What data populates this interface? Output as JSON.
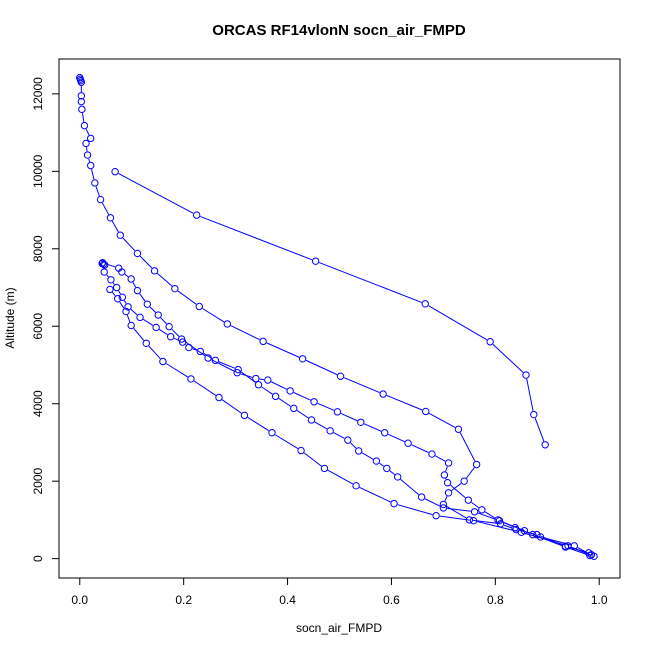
{
  "chart_data": {
    "type": "line",
    "title": "ORCAS RF14vlonN socn_air_FMPD",
    "xlabel": "socn_air_FMPD",
    "ylabel": "Altitude (m)",
    "xlim": [
      -0.04,
      1.04
    ],
    "ylim": [
      -500,
      12900
    ],
    "xticks": [
      0.0,
      0.2,
      0.4,
      0.6,
      0.8,
      1.0
    ],
    "xtick_labels": [
      "0.0",
      "0.2",
      "0.4",
      "0.6",
      "0.8",
      "1.0"
    ],
    "yticks": [
      0,
      2000,
      4000,
      6000,
      8000,
      10000,
      12000
    ],
    "ytick_labels": [
      "0",
      "2000",
      "4000",
      "6000",
      "8000",
      "10000",
      "12000"
    ],
    "grid": false,
    "color": "#0000ff",
    "series": [
      {
        "points": [
          [
            0.0,
            12420
          ],
          [
            0.001,
            12380
          ],
          [
            0.002,
            12340
          ],
          [
            0.003,
            12300
          ],
          [
            0.003,
            11950
          ],
          [
            0.003,
            11800
          ],
          [
            0.004,
            11600
          ],
          [
            0.009,
            11180
          ],
          [
            0.021,
            10850
          ],
          [
            0.012,
            10720
          ],
          [
            0.015,
            10420
          ],
          [
            0.021,
            10150
          ],
          [
            0.029,
            9700
          ],
          [
            0.04,
            9270
          ],
          [
            0.059,
            8800
          ],
          [
            0.078,
            8350
          ],
          [
            0.111,
            7880
          ],
          [
            0.144,
            7430
          ],
          [
            0.183,
            6970
          ],
          [
            0.23,
            6510
          ],
          [
            0.284,
            6060
          ],
          [
            0.353,
            5610
          ],
          [
            0.429,
            5160
          ],
          [
            0.502,
            4710
          ],
          [
            0.584,
            4250
          ],
          [
            0.666,
            3800
          ],
          [
            0.729,
            3340
          ],
          [
            0.764,
            2430
          ],
          [
            0.74,
            2000
          ],
          [
            0.71,
            1700
          ],
          [
            0.7,
            1400
          ],
          [
            0.75,
            1000
          ],
          [
            0.81,
            900
          ],
          [
            0.84,
            750
          ],
          [
            0.88,
            620
          ],
          [
            0.935,
            320
          ],
          [
            0.98,
            150
          ]
        ]
      },
      {
        "points": [
          [
            0.043,
            7620
          ],
          [
            0.046,
            7600
          ],
          [
            0.048,
            7580
          ],
          [
            0.047,
            7400
          ],
          [
            0.06,
            7200
          ],
          [
            0.071,
            7000
          ],
          [
            0.082,
            6750
          ],
          [
            0.093,
            6500
          ],
          [
            0.116,
            6230
          ],
          [
            0.147,
            5970
          ],
          [
            0.175,
            5730
          ],
          [
            0.198,
            5590
          ],
          [
            0.21,
            5450
          ],
          [
            0.232,
            5350
          ],
          [
            0.261,
            5120
          ],
          [
            0.305,
            4880
          ],
          [
            0.344,
            4490
          ],
          [
            0.377,
            4190
          ],
          [
            0.412,
            3880
          ],
          [
            0.446,
            3580
          ],
          [
            0.482,
            3300
          ],
          [
            0.516,
            3060
          ],
          [
            0.537,
            2780
          ],
          [
            0.571,
            2520
          ],
          [
            0.591,
            2330
          ],
          [
            0.612,
            2110
          ],
          [
            0.658,
            1590
          ],
          [
            0.7,
            1310
          ],
          [
            0.76,
            1210
          ],
          [
            0.808,
            980
          ],
          [
            0.856,
            720
          ],
          [
            0.887,
            560
          ],
          [
            0.952,
            330
          ],
          [
            0.985,
            100
          ]
        ]
      },
      {
        "points": [
          [
            0.044,
            7640
          ],
          [
            0.075,
            7500
          ],
          [
            0.081,
            7400
          ],
          [
            0.099,
            7220
          ],
          [
            0.111,
            6920
          ],
          [
            0.13,
            6570
          ],
          [
            0.151,
            6290
          ],
          [
            0.172,
            5990
          ],
          [
            0.196,
            5670
          ],
          [
            0.247,
            5180
          ],
          [
            0.303,
            4800
          ],
          [
            0.339,
            4650
          ],
          [
            0.362,
            4610
          ],
          [
            0.405,
            4330
          ],
          [
            0.451,
            4050
          ],
          [
            0.496,
            3790
          ],
          [
            0.541,
            3520
          ],
          [
            0.587,
            3250
          ],
          [
            0.632,
            2980
          ],
          [
            0.678,
            2700
          ],
          [
            0.71,
            2470
          ],
          [
            0.702,
            2160
          ],
          [
            0.708,
            1960
          ],
          [
            0.748,
            1510
          ],
          [
            0.774,
            1260
          ],
          [
            0.805,
            1000
          ],
          [
            0.838,
            800
          ],
          [
            0.872,
            620
          ],
          [
            0.935,
            300
          ],
          [
            0.982,
            80
          ]
        ]
      },
      {
        "points": [
          [
            0.058,
            6950
          ],
          [
            0.073,
            6710
          ],
          [
            0.089,
            6380
          ],
          [
            0.099,
            6020
          ],
          [
            0.128,
            5560
          ],
          [
            0.16,
            5090
          ],
          [
            0.214,
            4640
          ],
          [
            0.268,
            4160
          ],
          [
            0.317,
            3700
          ],
          [
            0.37,
            3250
          ],
          [
            0.426,
            2790
          ],
          [
            0.471,
            2330
          ],
          [
            0.532,
            1880
          ],
          [
            0.605,
            1420
          ],
          [
            0.686,
            1110
          ],
          [
            0.758,
            980
          ],
          [
            0.85,
            680
          ],
          [
            0.94,
            330
          ],
          [
            0.99,
            60
          ]
        ]
      },
      {
        "points": [
          [
            0.068,
            9990
          ],
          [
            0.225,
            8870
          ],
          [
            0.454,
            7680
          ],
          [
            0.665,
            6580
          ],
          [
            0.79,
            5600
          ],
          [
            0.859,
            4740
          ],
          [
            0.874,
            3720
          ],
          [
            0.896,
            2940
          ]
        ]
      }
    ]
  }
}
